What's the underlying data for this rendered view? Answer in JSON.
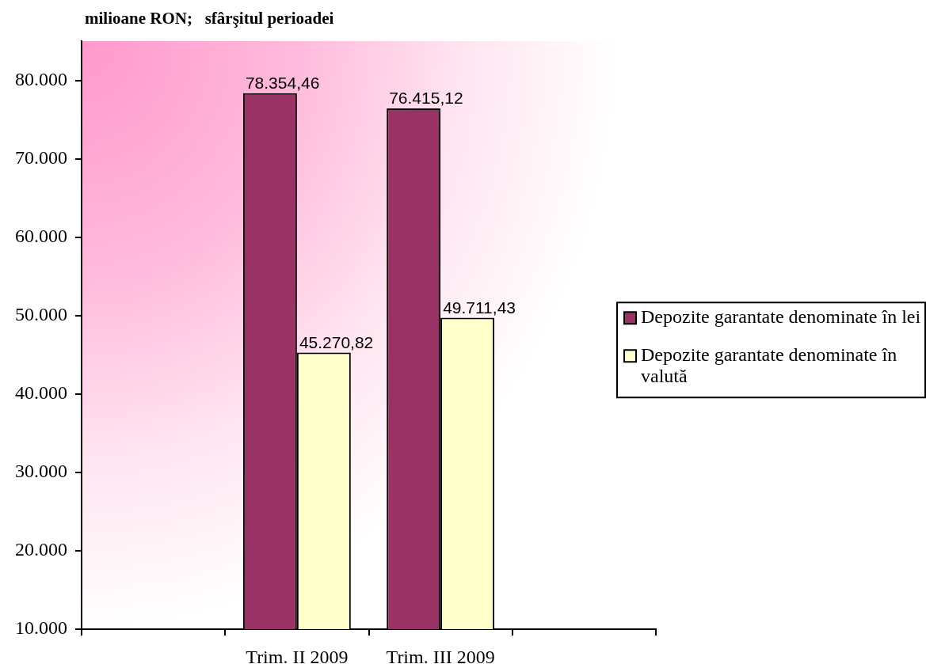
{
  "chart_data": {
    "type": "bar",
    "title": "milioane RON;   sfârşitul perioadei",
    "categories": [
      null,
      "Trim. II 2009",
      "Trim. III 2009",
      null
    ],
    "series": [
      {
        "name": "Depozite garantate denominate în lei",
        "color": "#993366",
        "values": [
          null,
          78354.46,
          76415.12,
          null
        ],
        "value_labels": [
          null,
          "78.354,46",
          "76.415,12",
          null
        ]
      },
      {
        "name": "Depozite garantate denominate în valută",
        "color": "#ffffcc",
        "values": [
          null,
          45270.82,
          49711.43,
          null
        ],
        "value_labels": [
          null,
          "45.270,82",
          "49.711,43",
          null
        ]
      }
    ],
    "ylim": [
      10000,
      85000
    ],
    "yticks": [
      {
        "value": 10000,
        "label": "10.000"
      },
      {
        "value": 20000,
        "label": "20.000"
      },
      {
        "value": 30000,
        "label": "30.000"
      },
      {
        "value": 40000,
        "label": "40.000"
      },
      {
        "value": 50000,
        "label": "50.000"
      },
      {
        "value": 60000,
        "label": "60.000"
      },
      {
        "value": 70000,
        "label": "70.000"
      },
      {
        "value": 80000,
        "label": "80.000"
      }
    ],
    "legend": "right",
    "grid": false
  }
}
